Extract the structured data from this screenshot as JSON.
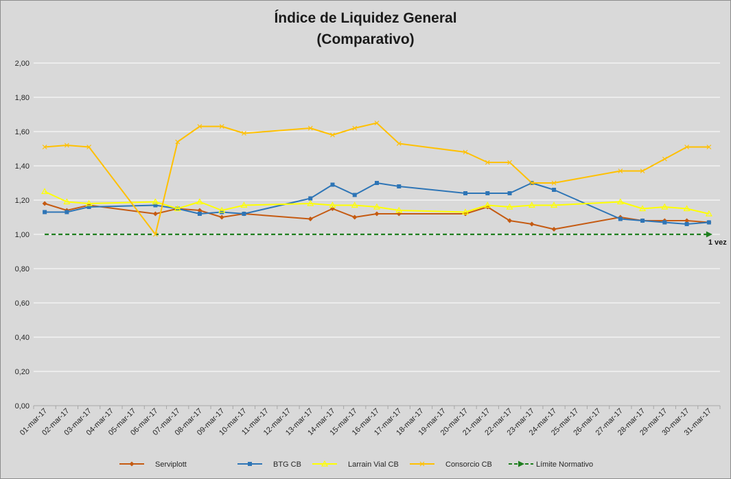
{
  "chart_data": {
    "type": "line",
    "title": "Índice de Liquidez General",
    "subtitle": "(Comparativo)",
    "xlabel": "",
    "ylabel": "",
    "ylim": [
      0,
      2
    ],
    "y_ticks": [
      "0,00",
      "0,20",
      "0,40",
      "0,60",
      "0,80",
      "1,00",
      "1,20",
      "1,40",
      "1,60",
      "1,80",
      "2,00"
    ],
    "grid": true,
    "legend_position": "bottom",
    "categories": [
      "01-mar-17",
      "02-mar-17",
      "03-mar-17",
      "04-mar-17",
      "05-mar-17",
      "06-mar-17",
      "07-mar-17",
      "08-mar-17",
      "09-mar-17",
      "10-mar-17",
      "11-mar-17",
      "12-mar-17",
      "13-mar-17",
      "14-mar-17",
      "15-mar-17",
      "16-mar-17",
      "17-mar-17",
      "18-mar-17",
      "19-mar-17",
      "20-mar-17",
      "21-mar-17",
      "22-mar-17",
      "23-mar-17",
      "24-mar-17",
      "25-mar-17",
      "26-mar-17",
      "27-mar-17",
      "28-mar-17",
      "29-mar-17",
      "30-mar-17",
      "31-mar-17"
    ],
    "series": [
      {
        "name": "Serviplott",
        "color": "#c55a11",
        "marker": "diamond",
        "values": [
          1.18,
          1.14,
          1.17,
          null,
          null,
          1.12,
          1.15,
          1.14,
          1.1,
          1.12,
          null,
          null,
          1.09,
          1.15,
          1.1,
          1.12,
          1.12,
          null,
          null,
          1.12,
          1.16,
          1.08,
          1.06,
          1.03,
          null,
          null,
          1.1,
          1.08,
          1.08,
          1.08,
          1.07
        ]
      },
      {
        "name": "BTG CB",
        "color": "#2e75b6",
        "marker": "square",
        "values": [
          1.13,
          1.13,
          1.16,
          null,
          null,
          1.17,
          1.15,
          1.12,
          1.13,
          1.12,
          null,
          null,
          1.21,
          1.29,
          1.23,
          1.3,
          1.28,
          null,
          null,
          1.24,
          1.24,
          1.24,
          1.3,
          1.26,
          null,
          null,
          1.09,
          1.08,
          1.07,
          1.06,
          1.07
        ]
      },
      {
        "name": "Larrain Vial CB",
        "color": "#ffff00",
        "marker": "triangle",
        "values": [
          1.25,
          1.19,
          1.18,
          null,
          null,
          1.19,
          1.15,
          1.19,
          1.14,
          1.17,
          null,
          null,
          1.18,
          1.17,
          1.17,
          1.16,
          1.14,
          null,
          null,
          1.13,
          1.17,
          1.16,
          1.17,
          1.17,
          null,
          null,
          1.19,
          1.15,
          1.16,
          1.15,
          1.12
        ]
      },
      {
        "name": "Consorcio CB",
        "color": "#ffc000",
        "marker": "x",
        "values": [
          1.51,
          1.52,
          1.51,
          null,
          null,
          1.0,
          1.54,
          1.63,
          1.63,
          1.59,
          null,
          null,
          1.62,
          1.58,
          1.62,
          1.65,
          1.53,
          null,
          null,
          1.48,
          1.42,
          1.42,
          1.3,
          1.3,
          null,
          null,
          1.37,
          1.37,
          1.44,
          1.51,
          1.51
        ]
      },
      {
        "name": "Límite Normativo",
        "color": "#1e7e1e",
        "marker": "arrow",
        "dashed": true,
        "values": [
          1.0,
          1.0,
          1.0,
          1.0,
          1.0,
          1.0,
          1.0,
          1.0,
          1.0,
          1.0,
          1.0,
          1.0,
          1.0,
          1.0,
          1.0,
          1.0,
          1.0,
          1.0,
          1.0,
          1.0,
          1.0,
          1.0,
          1.0,
          1.0,
          1.0,
          1.0,
          1.0,
          1.0,
          1.0,
          1.0,
          1.0
        ]
      }
    ],
    "annotations": [
      {
        "text": "1 vez",
        "x": "31-mar-17",
        "y": 1.0
      }
    ]
  }
}
